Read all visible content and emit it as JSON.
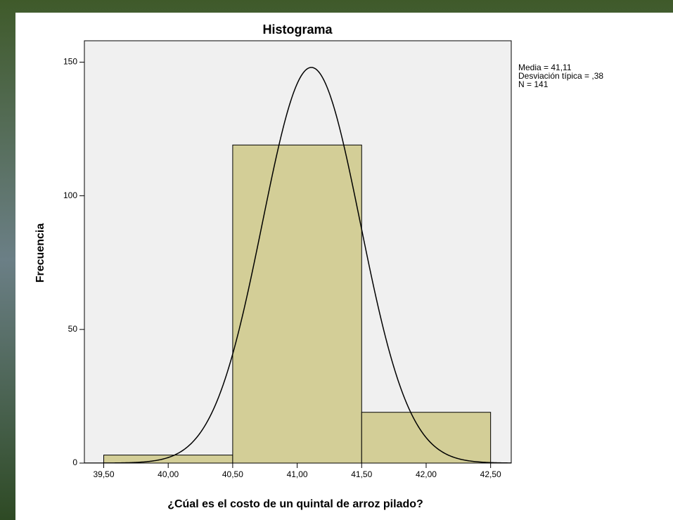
{
  "chart_data": {
    "type": "histogram",
    "title": "Histograma",
    "x_label": "¿Cúal es el costo de un quintal de arroz pilado?",
    "y_label": "Frecuencia",
    "bins": [
      39.5,
      40.5,
      41.5,
      42.5
    ],
    "values": [
      3,
      119,
      19
    ],
    "color": "#d3ce97",
    "xlim": [
      39.35,
      42.66
    ],
    "ylim": [
      0,
      158
    ],
    "xticks": [
      {
        "value": 39.5,
        "label": "39,50"
      },
      {
        "value": 40.0,
        "label": "40,00"
      },
      {
        "value": 40.5,
        "label": "40,50"
      },
      {
        "value": 41.0,
        "label": "41,00"
      },
      {
        "value": 41.5,
        "label": "41,50"
      },
      {
        "value": 42.0,
        "label": "42,00"
      },
      {
        "value": 42.5,
        "label": "42,50"
      }
    ],
    "yticks": [
      0,
      50,
      100,
      150
    ],
    "normal_curve": {
      "mean": {
        "value": 41.11,
        "label": "Media = 41,11"
      },
      "sd": {
        "value": 0.38,
        "label": "Desviación típica = ,38"
      },
      "n": {
        "value": 141,
        "label": "N = 141"
      }
    }
  }
}
